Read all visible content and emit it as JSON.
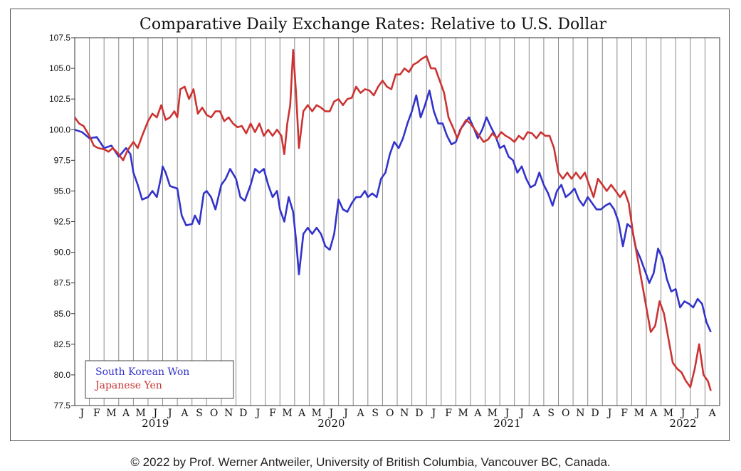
{
  "chart_data": {
    "type": "line",
    "title": "Comparative Daily Exchange Rates: Relative to U.S. Dollar",
    "ylim": [
      77.5,
      107.5
    ],
    "y_ticks": [
      "107.5",
      "105.0",
      "102.5",
      "100.0",
      "97.5",
      "95.0",
      "92.5",
      "90.0",
      "87.5",
      "85.0",
      "82.5",
      "80.0",
      "77.5"
    ],
    "y_tick_values": [
      107.5,
      105,
      102.5,
      100,
      97.5,
      95,
      92.5,
      90,
      87.5,
      85,
      82.5,
      80,
      77.5
    ],
    "x_month_labels": [
      "J",
      "F",
      "M",
      "A",
      "M",
      "J",
      "J",
      "A",
      "S",
      "O",
      "N",
      "D",
      "J",
      "F",
      "M",
      "A",
      "M",
      "J",
      "J",
      "A",
      "S",
      "O",
      "N",
      "D",
      "J",
      "F",
      "M",
      "A",
      "M",
      "J",
      "J",
      "A",
      "S",
      "O",
      "N",
      "D",
      "J",
      "F",
      "M",
      "A",
      "M",
      "J",
      "J",
      "A"
    ],
    "x_year_labels": [
      {
        "label": "2019",
        "month_index": 5.5
      },
      {
        "label": "2020",
        "month_index": 17.5
      },
      {
        "label": "2021",
        "month_index": 29.5
      },
      {
        "label": "2022",
        "month_index": 41.5
      }
    ],
    "grid": "vertical",
    "legend_position": "bottom-left",
    "x_unit": "month index (0 = Jan 2019)",
    "series": [
      {
        "name": "South Korean Won",
        "color": "#3333cc",
        "points": [
          [
            0,
            100
          ],
          [
            0.5,
            99.8
          ],
          [
            1,
            99.3
          ],
          [
            1.5,
            99.4
          ],
          [
            2,
            98.5
          ],
          [
            2.5,
            98.7
          ],
          [
            3,
            97.8
          ],
          [
            3.5,
            98.5
          ],
          [
            3.8,
            98.0
          ],
          [
            4,
            96.5
          ],
          [
            4.3,
            95.5
          ],
          [
            4.6,
            94.3
          ],
          [
            5,
            94.5
          ],
          [
            5.3,
            95
          ],
          [
            5.6,
            94.5
          ],
          [
            5.9,
            96.2
          ],
          [
            6,
            97
          ],
          [
            6.2,
            96.5
          ],
          [
            6.5,
            95.4
          ],
          [
            7,
            95.2
          ],
          [
            7.3,
            93
          ],
          [
            7.6,
            92.2
          ],
          [
            8,
            92.3
          ],
          [
            8.2,
            93
          ],
          [
            8.5,
            92.3
          ],
          [
            8.8,
            94.8
          ],
          [
            9,
            95
          ],
          [
            9.3,
            94.5
          ],
          [
            9.6,
            93.5
          ],
          [
            10,
            95.5
          ],
          [
            10.3,
            96
          ],
          [
            10.6,
            96.8
          ],
          [
            11,
            96
          ],
          [
            11.3,
            94.5
          ],
          [
            11.6,
            94.2
          ],
          [
            12,
            95.5
          ],
          [
            12.3,
            96.8
          ],
          [
            12.6,
            96.5
          ],
          [
            12.9,
            96.8
          ],
          [
            13.2,
            95.5
          ],
          [
            13.5,
            94.5
          ],
          [
            13.8,
            95
          ],
          [
            14,
            93.5
          ],
          [
            14.3,
            92.5
          ],
          [
            14.6,
            94.5
          ],
          [
            14.9,
            93.3
          ],
          [
            15.1,
            91
          ],
          [
            15.3,
            88.2
          ],
          [
            15.6,
            91.5
          ],
          [
            15.9,
            92
          ],
          [
            16.2,
            91.5
          ],
          [
            16.5,
            92
          ],
          [
            16.8,
            91.5
          ],
          [
            17.1,
            90.5
          ],
          [
            17.4,
            90.2
          ],
          [
            17.7,
            91.5
          ],
          [
            18,
            94.3
          ],
          [
            18.3,
            93.5
          ],
          [
            18.6,
            93.3
          ],
          [
            18.9,
            94
          ],
          [
            19.2,
            94.5
          ],
          [
            19.5,
            94.5
          ],
          [
            19.8,
            95
          ],
          [
            20,
            94.5
          ],
          [
            20.3,
            94.8
          ],
          [
            20.6,
            94.5
          ],
          [
            20.9,
            96
          ],
          [
            21.2,
            96.5
          ],
          [
            21.5,
            98
          ],
          [
            21.8,
            99
          ],
          [
            22.1,
            98.5
          ],
          [
            22.4,
            99.3
          ],
          [
            22.7,
            100.5
          ],
          [
            23,
            101.5
          ],
          [
            23.3,
            102.8
          ],
          [
            23.6,
            101
          ],
          [
            23.9,
            102
          ],
          [
            24.2,
            103.2
          ],
          [
            24.5,
            101.5
          ],
          [
            24.8,
            100.5
          ],
          [
            25.1,
            100.5
          ],
          [
            25.4,
            99.5
          ],
          [
            25.7,
            98.8
          ],
          [
            26,
            99
          ],
          [
            26.3,
            100
          ],
          [
            26.6,
            100.5
          ],
          [
            26.9,
            101
          ],
          [
            27.2,
            100.2
          ],
          [
            27.5,
            99.3
          ],
          [
            27.8,
            100
          ],
          [
            28.1,
            101
          ],
          [
            28.4,
            100.2
          ],
          [
            28.7,
            99.5
          ],
          [
            29,
            98.5
          ],
          [
            29.3,
            98.7
          ],
          [
            29.6,
            97.8
          ],
          [
            29.9,
            97.5
          ],
          [
            30.2,
            96.5
          ],
          [
            30.5,
            97
          ],
          [
            30.8,
            96
          ],
          [
            31.1,
            95.3
          ],
          [
            31.4,
            95.5
          ],
          [
            31.7,
            96.5
          ],
          [
            32,
            95.5
          ],
          [
            32.3,
            94.8
          ],
          [
            32.6,
            93.8
          ],
          [
            32.9,
            95
          ],
          [
            33.2,
            95.5
          ],
          [
            33.5,
            94.5
          ],
          [
            33.8,
            94.8
          ],
          [
            34.1,
            95.2
          ],
          [
            34.4,
            94.3
          ],
          [
            34.7,
            93.8
          ],
          [
            35,
            94.5
          ],
          [
            35.3,
            94
          ],
          [
            35.6,
            93.5
          ],
          [
            35.9,
            93.5
          ],
          [
            36.2,
            93.8
          ],
          [
            36.5,
            94
          ],
          [
            36.8,
            93.5
          ],
          [
            37.1,
            92.5
          ],
          [
            37.4,
            90.5
          ],
          [
            37.7,
            92.3
          ],
          [
            38,
            92
          ],
          [
            38.3,
            90.3
          ],
          [
            38.6,
            89.5
          ],
          [
            38.9,
            88.5
          ],
          [
            39.2,
            87.5
          ],
          [
            39.5,
            88.3
          ],
          [
            39.8,
            90.3
          ],
          [
            40.1,
            89.5
          ],
          [
            40.4,
            87.8
          ],
          [
            40.7,
            86.8
          ],
          [
            41,
            87
          ],
          [
            41.3,
            85.5
          ],
          [
            41.6,
            86
          ],
          [
            41.9,
            85.8
          ],
          [
            42.2,
            85.5
          ],
          [
            42.5,
            86.2
          ],
          [
            42.8,
            85.8
          ],
          [
            43.1,
            84.3
          ],
          [
            43.4,
            83.5
          ]
        ]
      },
      {
        "name": "Japanese Yen",
        "color": "#cc3333",
        "points": [
          [
            0,
            101
          ],
          [
            0.3,
            100.5
          ],
          [
            0.6,
            100.3
          ],
          [
            1,
            99.5
          ],
          [
            1.3,
            98.7
          ],
          [
            1.6,
            98.5
          ],
          [
            2,
            98.4
          ],
          [
            2.3,
            98.2
          ],
          [
            2.6,
            98.5
          ],
          [
            3,
            98
          ],
          [
            3.3,
            97.5
          ],
          [
            3.6,
            98.3
          ],
          [
            4,
            99
          ],
          [
            4.3,
            98.5
          ],
          [
            4.6,
            99.5
          ],
          [
            5,
            100.7
          ],
          [
            5.3,
            101.3
          ],
          [
            5.6,
            101
          ],
          [
            5.9,
            102
          ],
          [
            6.2,
            100.8
          ],
          [
            6.5,
            101
          ],
          [
            6.8,
            101.5
          ],
          [
            7,
            101
          ],
          [
            7.2,
            103.3
          ],
          [
            7.5,
            103.5
          ],
          [
            7.8,
            102.5
          ],
          [
            8.1,
            103.3
          ],
          [
            8.4,
            101.3
          ],
          [
            8.7,
            101.8
          ],
          [
            9,
            101.2
          ],
          [
            9.3,
            101
          ],
          [
            9.6,
            101.5
          ],
          [
            9.9,
            101.5
          ],
          [
            10.2,
            100.7
          ],
          [
            10.5,
            101
          ],
          [
            10.8,
            100.5
          ],
          [
            11.1,
            100.2
          ],
          [
            11.4,
            100.3
          ],
          [
            11.7,
            99.7
          ],
          [
            12,
            100.5
          ],
          [
            12.3,
            99.8
          ],
          [
            12.6,
            100.5
          ],
          [
            12.9,
            99.5
          ],
          [
            13.2,
            100
          ],
          [
            13.5,
            99.5
          ],
          [
            13.8,
            100
          ],
          [
            14.1,
            99.5
          ],
          [
            14.3,
            98
          ],
          [
            14.5,
            100.5
          ],
          [
            14.7,
            102
          ],
          [
            14.9,
            106.5
          ],
          [
            15.1,
            103
          ],
          [
            15.3,
            98.5
          ],
          [
            15.6,
            101.5
          ],
          [
            15.9,
            102
          ],
          [
            16.2,
            101.5
          ],
          [
            16.5,
            102
          ],
          [
            16.8,
            101.8
          ],
          [
            17.1,
            101.5
          ],
          [
            17.4,
            101.5
          ],
          [
            17.7,
            102.3
          ],
          [
            18,
            102.5
          ],
          [
            18.3,
            102
          ],
          [
            18.6,
            102.5
          ],
          [
            18.9,
            102.6
          ],
          [
            19.2,
            103.5
          ],
          [
            19.5,
            103
          ],
          [
            19.8,
            103.3
          ],
          [
            20.1,
            103.2
          ],
          [
            20.4,
            102.8
          ],
          [
            20.7,
            103.5
          ],
          [
            21,
            104
          ],
          [
            21.3,
            103.5
          ],
          [
            21.6,
            103.3
          ],
          [
            21.9,
            104.5
          ],
          [
            22.2,
            104.5
          ],
          [
            22.5,
            105
          ],
          [
            22.8,
            104.7
          ],
          [
            23.1,
            105.3
          ],
          [
            23.4,
            105.5
          ],
          [
            23.7,
            105.8
          ],
          [
            24,
            106
          ],
          [
            24.3,
            105
          ],
          [
            24.6,
            105
          ],
          [
            24.9,
            104
          ],
          [
            25.2,
            103
          ],
          [
            25.5,
            101
          ],
          [
            25.8,
            100.2
          ],
          [
            26.1,
            99.3
          ],
          [
            26.4,
            100.2
          ],
          [
            26.7,
            100.8
          ],
          [
            27,
            100.5
          ],
          [
            27.3,
            100
          ],
          [
            27.6,
            99.5
          ],
          [
            27.9,
            99
          ],
          [
            28.2,
            99.2
          ],
          [
            28.5,
            99.7
          ],
          [
            28.8,
            99.3
          ],
          [
            29.1,
            99.8
          ],
          [
            29.4,
            99.5
          ],
          [
            29.7,
            99.3
          ],
          [
            30,
            99
          ],
          [
            30.3,
            99.5
          ],
          [
            30.6,
            99.2
          ],
          [
            30.9,
            99.8
          ],
          [
            31.2,
            99.7
          ],
          [
            31.5,
            99.3
          ],
          [
            31.8,
            99.8
          ],
          [
            32.1,
            99.5
          ],
          [
            32.4,
            99.5
          ],
          [
            32.7,
            98.5
          ],
          [
            33,
            96.5
          ],
          [
            33.3,
            96
          ],
          [
            33.6,
            96.5
          ],
          [
            33.9,
            96
          ],
          [
            34.2,
            96.5
          ],
          [
            34.5,
            96
          ],
          [
            34.8,
            96.5
          ],
          [
            35.1,
            95.5
          ],
          [
            35.4,
            94.5
          ],
          [
            35.7,
            96
          ],
          [
            36,
            95.5
          ],
          [
            36.3,
            95
          ],
          [
            36.6,
            95.5
          ],
          [
            36.9,
            95
          ],
          [
            37.2,
            94.5
          ],
          [
            37.5,
            95
          ],
          [
            37.8,
            94
          ],
          [
            38.1,
            91.5
          ],
          [
            38.4,
            89.5
          ],
          [
            38.7,
            87.5
          ],
          [
            39,
            85.5
          ],
          [
            39.3,
            83.5
          ],
          [
            39.6,
            84
          ],
          [
            39.9,
            86
          ],
          [
            40.2,
            85
          ],
          [
            40.5,
            83
          ],
          [
            40.8,
            81
          ],
          [
            41.1,
            80.5
          ],
          [
            41.4,
            80.2
          ],
          [
            41.7,
            79.5
          ],
          [
            42,
            79
          ],
          [
            42.3,
            80.5
          ],
          [
            42.6,
            82.5
          ],
          [
            42.9,
            80
          ],
          [
            43.2,
            79.5
          ],
          [
            43.4,
            78.7
          ]
        ]
      }
    ]
  },
  "footer": {
    "copyright": "© 2022 by Prof. Werner Antweiler, University of British Columbia, Vancouver BC, Canada."
  }
}
